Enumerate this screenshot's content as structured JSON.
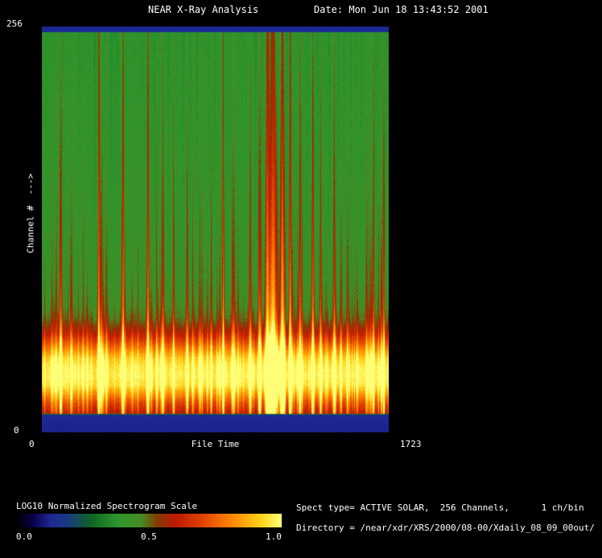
{
  "window": {
    "background": "#000000",
    "text_color": "#ffffff"
  },
  "header": {
    "title": "NEAR X-Ray Analysis",
    "date": "Date: Mon Jun 18 13:43:52 2001"
  },
  "plot": {
    "y_axis": {
      "label": "Channel #  --->",
      "top_tick": "256",
      "bottom_tick": "0"
    },
    "x_axis": {
      "left_tick": "0",
      "label": "File Time",
      "right_tick": "1723"
    }
  },
  "colorbar": {
    "title": "LOG10 Normalized Spectrogram Scale",
    "ticks": [
      "0.0",
      "0.5",
      "1.0"
    ]
  },
  "info": {
    "line1": "Spect type= ACTIVE SOLAR,  256 Channels,      1 ch/bin",
    "line2": "Directory = /near/xdr/XRS/2000/08-00/Xdaily_08_09_00out/"
  },
  "chart_data": {
    "type": "heatmap",
    "title": "NEAR X-Ray Analysis",
    "xlabel": "File Time",
    "ylabel": "Channel #",
    "xlim": [
      0,
      1723
    ],
    "ylim": [
      0,
      256
    ],
    "grid": false,
    "colorbar_label": "LOG10 Normalized Spectrogram Scale",
    "colorbar_range": [
      0.0,
      1.0
    ],
    "description": "LOG10-normalized X-ray spectrogram, 256 channels vs file time 0-1723. Channels ~26-50 form a saturated bright yellow band, channels ~12-25 red, channels above ~70 are green background crossed by vertical solar-flare streaks; the top ~3 and bottom ~11 channels are dark blue (no data).",
    "bands": [
      {
        "channels": [
          0,
          11
        ],
        "level": 0.12,
        "appearance": "dark blue (no data)"
      },
      {
        "channels": [
          12,
          25
        ],
        "level": 0.7,
        "appearance": "red"
      },
      {
        "channels": [
          26,
          50
        ],
        "level": 0.95,
        "appearance": "bright saturated yellow band"
      },
      {
        "channels": [
          51,
          70
        ],
        "level": 0.6,
        "appearance": "orange-red transition"
      },
      {
        "channels": [
          71,
          252
        ],
        "level": 0.4,
        "appearance": "green background with flare streaks"
      },
      {
        "channels": [
          253,
          256
        ],
        "level": 0.13,
        "appearance": "dark blue strip"
      }
    ],
    "colormap_stops": [
      [
        0.0,
        0,
        0,
        0
      ],
      [
        0.06,
        8,
        0,
        70
      ],
      [
        0.13,
        30,
        40,
        150
      ],
      [
        0.2,
        25,
        60,
        125
      ],
      [
        0.28,
        15,
        100,
        35
      ],
      [
        0.38,
        45,
        150,
        45
      ],
      [
        0.47,
        70,
        140,
        35
      ],
      [
        0.53,
        130,
        60,
        5
      ],
      [
        0.6,
        190,
        25,
        0
      ],
      [
        0.7,
        225,
        65,
        0
      ],
      [
        0.82,
        255,
        140,
        0
      ],
      [
        0.93,
        255,
        215,
        30
      ],
      [
        1.0,
        255,
        255,
        120
      ]
    ],
    "base_profile": [
      [
        0,
        0.12
      ],
      [
        9,
        0.13
      ],
      [
        11.6,
        0.14
      ],
      [
        11.8,
        0.55
      ],
      [
        14,
        0.62
      ],
      [
        19,
        0.7
      ],
      [
        25,
        0.83
      ],
      [
        30,
        0.94
      ],
      [
        36,
        0.97
      ],
      [
        42,
        0.95
      ],
      [
        47,
        0.9
      ],
      [
        52,
        0.8
      ],
      [
        58,
        0.68
      ],
      [
        64,
        0.57
      ],
      [
        71,
        0.49
      ],
      [
        80,
        0.445
      ],
      [
        95,
        0.425
      ],
      [
        130,
        0.41
      ],
      [
        180,
        0.395
      ],
      [
        230,
        0.385
      ],
      [
        252.7,
        0.38
      ],
      [
        252.9,
        0.14
      ],
      [
        256,
        0.13
      ]
    ],
    "flare_events": [
      [
        0.028,
        0.35,
        0.002
      ],
      [
        0.053,
        0.55,
        0.0025
      ],
      [
        0.085,
        0.4,
        0.002
      ],
      [
        0.118,
        0.3,
        0.002
      ],
      [
        0.163,
        0.6,
        0.0022
      ],
      [
        0.185,
        0.42,
        0.002
      ],
      [
        0.232,
        0.72,
        0.0025
      ],
      [
        0.26,
        0.3,
        0.002
      ],
      [
        0.305,
        0.5,
        0.0025
      ],
      [
        0.348,
        0.55,
        0.0028
      ],
      [
        0.378,
        0.35,
        0.002
      ],
      [
        0.418,
        0.5,
        0.0025
      ],
      [
        0.455,
        0.4,
        0.002
      ],
      [
        0.487,
        0.45,
        0.002
      ],
      [
        0.522,
        0.8,
        0.0022
      ],
      [
        0.553,
        0.5,
        0.002
      ],
      [
        0.6,
        0.55,
        0.003
      ],
      [
        0.628,
        0.6,
        0.003
      ],
      [
        0.648,
        0.75,
        0.004
      ],
      [
        0.665,
        0.95,
        0.009
      ],
      [
        0.692,
        0.85,
        0.005
      ],
      [
        0.715,
        0.6,
        0.003
      ],
      [
        0.742,
        0.5,
        0.0025
      ],
      [
        0.78,
        0.78,
        0.0028
      ],
      [
        0.802,
        0.5,
        0.002
      ],
      [
        0.842,
        0.65,
        0.0028
      ],
      [
        0.88,
        0.45,
        0.0022
      ],
      [
        0.908,
        0.35,
        0.002
      ],
      [
        0.935,
        0.42,
        0.002
      ],
      [
        0.955,
        0.6,
        0.0025
      ],
      [
        0.978,
        0.5,
        0.002
      ]
    ],
    "render": {
      "seed": 20010618,
      "minor_events": 90,
      "noise": 0.06
    }
  }
}
